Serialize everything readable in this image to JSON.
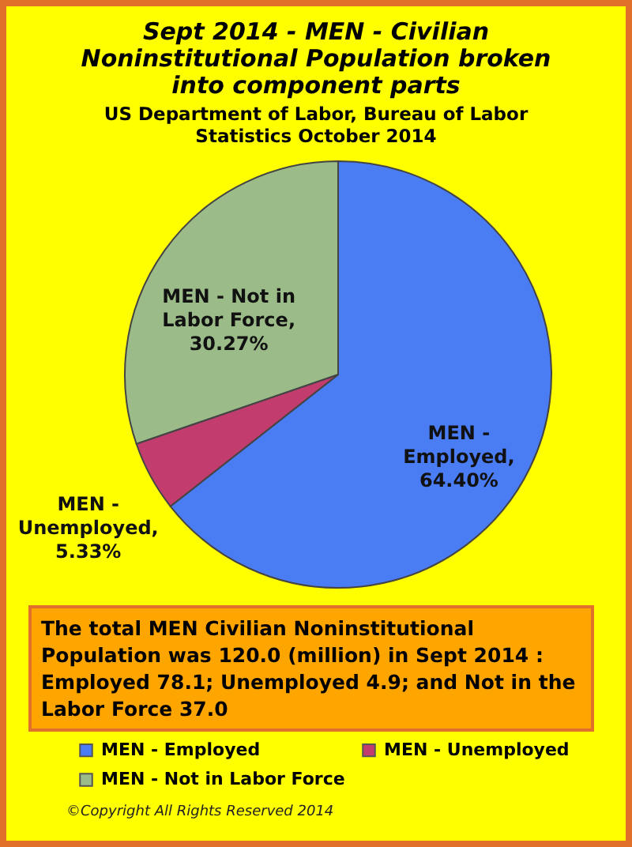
{
  "chart_data": {
    "type": "pie",
    "title": "Sept 2014 - MEN - Civilian Noninstitutional Population broken into component parts",
    "subtitle": "US Department of Labor, Bureau of Labor Statistics October 2014",
    "categories": [
      "MEN - Employed",
      "MEN - Unemployed",
      "MEN - Not in Labor Force"
    ],
    "values": [
      64.4,
      5.33,
      30.27
    ],
    "value_labels": [
      ", 64.40%",
      ", 5.33%",
      ", 30.27%"
    ],
    "colors": [
      "#4a7cf4",
      "#c23c6e",
      "#9bbb88"
    ],
    "legend": "bottom",
    "annotations": [
      "The total MEN Civilian Noninstitutional Population was 120.0 (million) in Sept 2014 : Employed 78.1; Unemployed 4.9; and Not in the Labor Force 37.0",
      "©Copyright All Rights Reserved 2014"
    ]
  }
}
